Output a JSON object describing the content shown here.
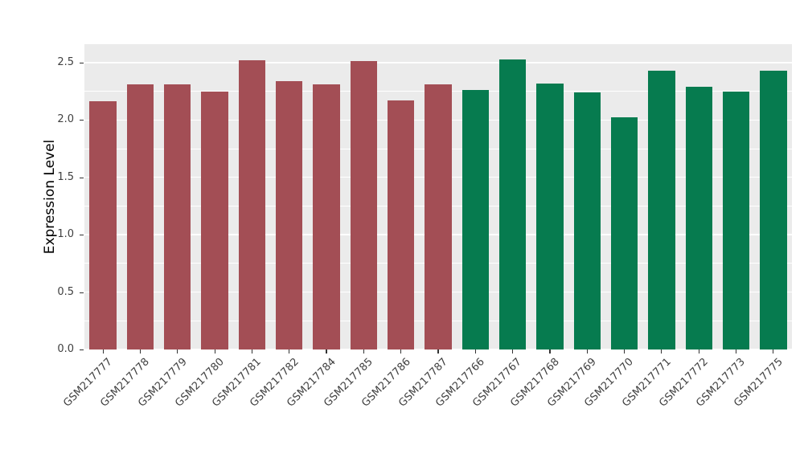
{
  "chart_data": {
    "type": "bar",
    "title": "",
    "xlabel": "",
    "ylabel": "Expression Level",
    "ylim": [
      0,
      2.66
    ],
    "yticks": [
      0,
      0.5,
      1,
      1.5,
      2,
      2.5
    ],
    "ytick_labels": [
      "0.0",
      "0.5",
      "1.0",
      "1.5",
      "2.0",
      "2.5"
    ],
    "minor_ticks": [
      0.25,
      0.75,
      1.25,
      1.75,
      2.25
    ],
    "grid": "on",
    "legend": "none",
    "categories": [
      "GSM217777",
      "GSM217778",
      "GSM217779",
      "GSM217780",
      "GSM217781",
      "GSM217782",
      "GSM217784",
      "GSM217785",
      "GSM217786",
      "GSM217787",
      "GSM217766",
      "GSM217767",
      "GSM217768",
      "GSM217769",
      "GSM217770",
      "GSM217771",
      "GSM217772",
      "GSM217773",
      "GSM217775"
    ],
    "values": [
      2.16,
      2.31,
      2.31,
      2.25,
      2.52,
      2.34,
      2.31,
      2.51,
      2.17,
      2.31,
      2.26,
      2.53,
      2.32,
      2.24,
      2.02,
      2.43,
      2.29,
      2.25,
      2.43
    ],
    "bars": [
      {
        "label": "GSM217777",
        "value": 2.16,
        "color": "#A34E55"
      },
      {
        "label": "GSM217778",
        "value": 2.31,
        "color": "#A34E55"
      },
      {
        "label": "GSM217779",
        "value": 2.31,
        "color": "#A34E55"
      },
      {
        "label": "GSM217780",
        "value": 2.25,
        "color": "#A34E55"
      },
      {
        "label": "GSM217781",
        "value": 2.52,
        "color": "#A34E55"
      },
      {
        "label": "GSM217782",
        "value": 2.34,
        "color": "#A34E55"
      },
      {
        "label": "GSM217784",
        "value": 2.31,
        "color": "#A34E55"
      },
      {
        "label": "GSM217785",
        "value": 2.51,
        "color": "#A34E55"
      },
      {
        "label": "GSM217786",
        "value": 2.17,
        "color": "#A34E55"
      },
      {
        "label": "GSM217787",
        "value": 2.31,
        "color": "#A34E55"
      },
      {
        "label": "GSM217766",
        "value": 2.26,
        "color": "#067B4F"
      },
      {
        "label": "GSM217767",
        "value": 2.53,
        "color": "#067B4F"
      },
      {
        "label": "GSM217768",
        "value": 2.32,
        "color": "#067B4F"
      },
      {
        "label": "GSM217769",
        "value": 2.24,
        "color": "#067B4F"
      },
      {
        "label": "GSM217770",
        "value": 2.02,
        "color": "#067B4F"
      },
      {
        "label": "GSM217771",
        "value": 2.43,
        "color": "#067B4F"
      },
      {
        "label": "GSM217772",
        "value": 2.29,
        "color": "#067B4F"
      },
      {
        "label": "GSM217773",
        "value": 2.25,
        "color": "#067B4F"
      },
      {
        "label": "GSM217775",
        "value": 2.43,
        "color": "#067B4F"
      }
    ],
    "group_colors": {
      "first_group": "#A34E55",
      "second_group": "#067B4F"
    }
  },
  "style": {
    "page_bg": "#FFFFFF",
    "panel_bg": "#EBEBEB",
    "grid_color": "#FFFFFF",
    "tick_color": "#333333",
    "tick_label_color": "#404040",
    "axis_title_color": "#000000"
  }
}
